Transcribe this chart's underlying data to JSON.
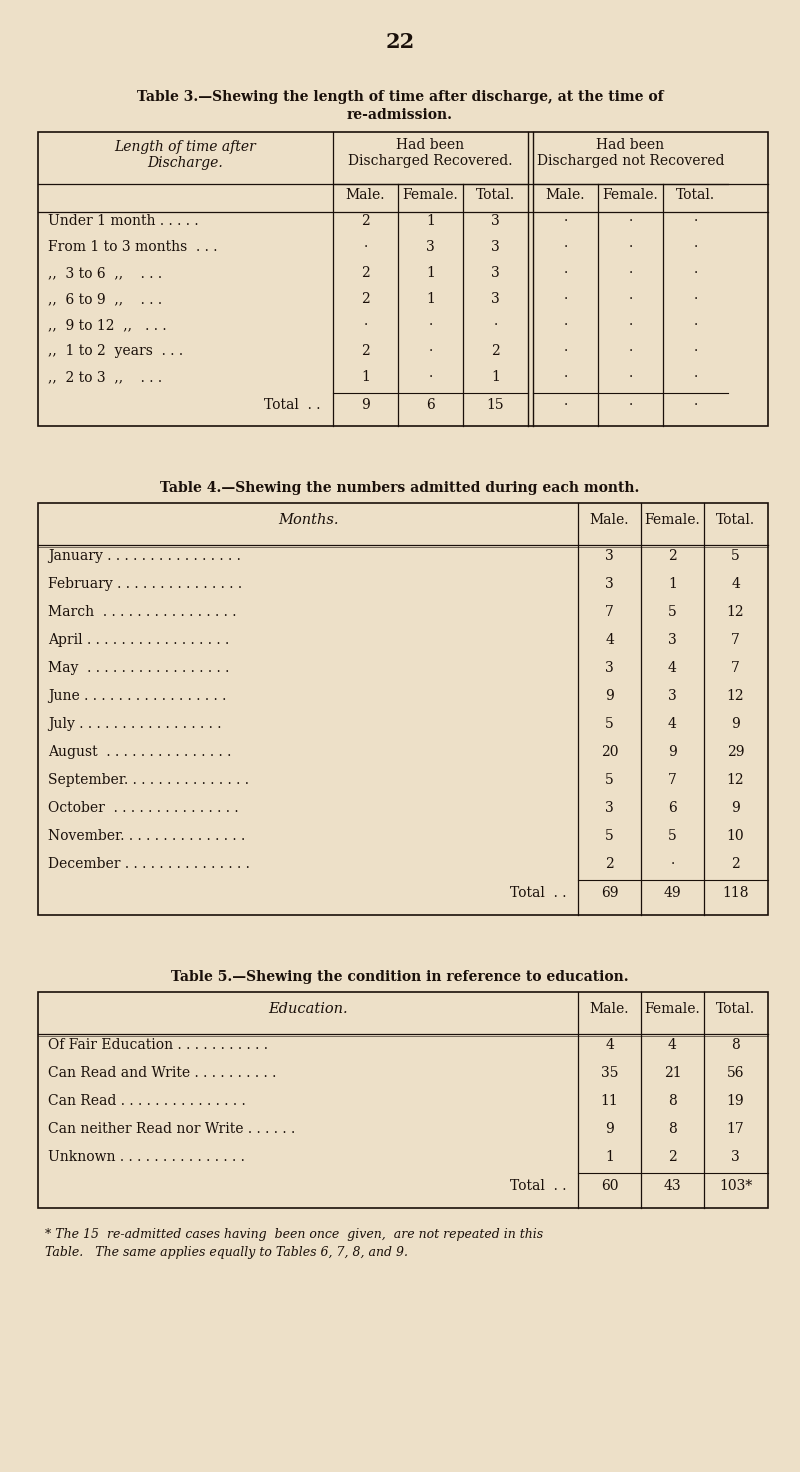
{
  "bg_color": "#EDE0C8",
  "text_color": "#1a100a",
  "page_number": "22",
  "table3": {
    "title_line1": "Table 3.—Shewing the length of time after discharge, at the time of",
    "title_line2": "re-admission.",
    "col_header1": "Length of time after",
    "col_header2": "Discharge.",
    "subheader1_line1": "Had been",
    "subheader1_line2": "Discharged Recovered.",
    "subheader2_line1": "Had been",
    "subheader2_line2": "Discharged not Recovered",
    "sub_cols": [
      "Male.",
      "Female.",
      "Total.",
      "Male.",
      "Female.",
      "Total."
    ],
    "rows": [
      [
        "Under 1 month . . . . .",
        "2",
        "1",
        "3",
        "·",
        "·",
        "·"
      ],
      [
        "From 1 to 3 months  . . .",
        "·",
        "3",
        "3",
        "·",
        "·",
        "·"
      ],
      [
        ",,  3 to 6  ,,    . . .",
        "2",
        "1",
        "3",
        "·",
        "·",
        "·"
      ],
      [
        ",,  6 to 9  ,,    . . .",
        "2",
        "1",
        "3",
        "·",
        "·",
        "·"
      ],
      [
        ",,  9 to 12  ,,   . . .",
        "·",
        "·",
        "·",
        "·",
        "·",
        "·"
      ],
      [
        ",,  1 to 2  years  . . .",
        "2",
        "·",
        "2",
        "·",
        "·",
        "·"
      ],
      [
        ",,  2 to 3  ,,    . . .",
        "1",
        "·",
        "1",
        "·",
        "·",
        "·"
      ]
    ],
    "total_row": [
      "Total  . .",
      "9",
      "6",
      "15",
      "·",
      "·",
      "·"
    ]
  },
  "table4": {
    "title": "Table 4.—Shewing the numbers admitted during each month.",
    "col_header": "Months.",
    "sub_cols": [
      "Male.",
      "Female.",
      "Total."
    ],
    "rows": [
      [
        "January . . . . . . . . . . . . . . . .",
        "3",
        "2",
        "5"
      ],
      [
        "February . . . . . . . . . . . . . . .",
        "3",
        "1",
        "4"
      ],
      [
        "March  . . . . . . . . . . . . . . . .",
        "7",
        "5",
        "12"
      ],
      [
        "April . . . . . . . . . . . . . . . . .",
        "4",
        "3",
        "7"
      ],
      [
        "May  . . . . . . . . . . . . . . . . .",
        "3",
        "4",
        "7"
      ],
      [
        "June . . . . . . . . . . . . . . . . .",
        "9",
        "3",
        "12"
      ],
      [
        "July . . . . . . . . . . . . . . . . .",
        "5",
        "4",
        "9"
      ],
      [
        "August  . . . . . . . . . . . . . . .",
        "20",
        "9",
        "29"
      ],
      [
        "September. . . . . . . . . . . . . . .",
        "5",
        "7",
        "12"
      ],
      [
        "October  . . . . . . . . . . . . . . .",
        "3",
        "6",
        "9"
      ],
      [
        "November. . . . . . . . . . . . . . .",
        "5",
        "5",
        "10"
      ],
      [
        "December . . . . . . . . . . . . . . .",
        "2",
        "·",
        "2"
      ]
    ],
    "total_row": [
      "Total  . .",
      "69",
      "49",
      "118"
    ]
  },
  "table5": {
    "title": "Table 5.—Shewing the condition in reference to education.",
    "col_header": "Education.",
    "sub_cols": [
      "Male.",
      "Female.",
      "Total."
    ],
    "rows": [
      [
        "Of Fair Education . . . . . . . . . . .",
        "4",
        "4",
        "8"
      ],
      [
        "Can Read and Write . . . . . . . . . .",
        "35",
        "21",
        "56"
      ],
      [
        "Can Read . . . . . . . . . . . . . . .",
        "11",
        "8",
        "19"
      ],
      [
        "Can neither Read nor Write . . . . . .",
        "9",
        "8",
        "17"
      ],
      [
        "Unknown . . . . . . . . . . . . . . .",
        "1",
        "2",
        "3"
      ]
    ],
    "total_row": [
      "Total  . .",
      "60",
      "43",
      "103*"
    ]
  },
  "footnote_line1": "* The 15  re-admitted cases having  been once  given,  are not repeated in this",
  "footnote_line2": "Table.   The same applies equally to Tables 6, 7, 8, and 9."
}
